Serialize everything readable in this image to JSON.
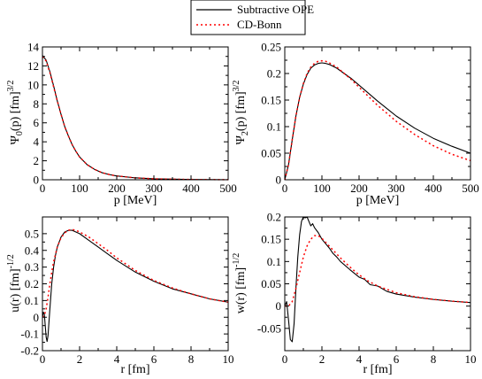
{
  "legend": {
    "items": [
      {
        "label": "Subtractive OPE",
        "color": "#000000",
        "dash": "solid"
      },
      {
        "label": "CD-Bonn",
        "color": "#ff0000",
        "dash": "dotted"
      }
    ]
  },
  "chart_data": [
    {
      "type": "line",
      "xlabel": "p [MeV]",
      "ylabel": {
        "base": "Ψ",
        "sub": "0",
        "mid": "(p) [fm]",
        "sup": "3/2"
      },
      "xlim": [
        0,
        500
      ],
      "ylim": [
        0,
        14
      ],
      "xticks": [
        0,
        100,
        200,
        300,
        400,
        500
      ],
      "yticks": [
        0,
        2,
        4,
        6,
        8,
        10,
        12,
        14
      ],
      "grid": false,
      "series": [
        {
          "name": "Subtractive OPE",
          "x": [
            0,
            10,
            20,
            30,
            40,
            50,
            60,
            70,
            80,
            90,
            100,
            120,
            140,
            160,
            180,
            200,
            250,
            300,
            350,
            400,
            450,
            500
          ],
          "y": [
            13.1,
            12.6,
            11.4,
            9.9,
            8.3,
            6.9,
            5.6,
            4.6,
            3.7,
            3.0,
            2.4,
            1.6,
            1.1,
            0.75,
            0.55,
            0.4,
            0.2,
            0.1,
            0.06,
            0.03,
            0.02,
            0.01
          ]
        },
        {
          "name": "CD-Bonn",
          "x": [
            0,
            10,
            20,
            30,
            40,
            50,
            60,
            70,
            80,
            90,
            100,
            120,
            140,
            160,
            180,
            200,
            250,
            300,
            350,
            400,
            450,
            500
          ],
          "y": [
            13.0,
            12.5,
            11.3,
            9.8,
            8.3,
            6.9,
            5.6,
            4.6,
            3.7,
            3.0,
            2.4,
            1.6,
            1.1,
            0.75,
            0.55,
            0.4,
            0.2,
            0.1,
            0.06,
            0.03,
            0.02,
            0.01
          ]
        }
      ]
    },
    {
      "type": "line",
      "xlabel": "p [MeV]",
      "ylabel": {
        "base": "Ψ",
        "sub": "2",
        "mid": "(p) [fm]",
        "sup": "3/2"
      },
      "xlim": [
        0,
        500
      ],
      "ylim": [
        0,
        0.25
      ],
      "xticks": [
        0,
        100,
        200,
        300,
        400,
        500
      ],
      "yticks": [
        0,
        0.05,
        0.1,
        0.15,
        0.2,
        0.25
      ],
      "ytick_labels": [
        "0",
        "0.05",
        "0.1",
        "0.15",
        "0.2",
        "0.25"
      ],
      "grid": false,
      "series": [
        {
          "name": "Subtractive OPE",
          "x": [
            0,
            10,
            20,
            30,
            40,
            50,
            60,
            70,
            80,
            90,
            100,
            110,
            120,
            140,
            160,
            180,
            200,
            250,
            300,
            350,
            400,
            450,
            500
          ],
          "y": [
            0,
            0.028,
            0.075,
            0.12,
            0.155,
            0.18,
            0.198,
            0.21,
            0.216,
            0.219,
            0.22,
            0.219,
            0.217,
            0.21,
            0.2,
            0.19,
            0.178,
            0.148,
            0.12,
            0.097,
            0.078,
            0.063,
            0.05
          ]
        },
        {
          "name": "CD-Bonn",
          "x": [
            0,
            10,
            20,
            30,
            40,
            50,
            60,
            70,
            80,
            90,
            100,
            110,
            120,
            140,
            160,
            180,
            200,
            250,
            300,
            350,
            400,
            450,
            500
          ],
          "y": [
            0,
            0.028,
            0.075,
            0.12,
            0.155,
            0.181,
            0.2,
            0.212,
            0.219,
            0.223,
            0.224,
            0.223,
            0.22,
            0.212,
            0.2,
            0.188,
            0.174,
            0.14,
            0.11,
            0.085,
            0.064,
            0.048,
            0.036
          ]
        }
      ]
    },
    {
      "type": "line",
      "xlabel": "r [fm]",
      "ylabel": {
        "base": "u(r) [fm]",
        "sub": "",
        "mid": "",
        "sup": "-1/2"
      },
      "xlim": [
        0,
        10
      ],
      "ylim": [
        -0.2,
        0.6
      ],
      "xticks": [
        0,
        2,
        4,
        6,
        8,
        10
      ],
      "yticks": [
        -0.2,
        -0.1,
        0,
        0.1,
        0.2,
        0.3,
        0.4,
        0.5
      ],
      "ytick_labels": [
        "-0.2",
        "-0.1",
        "0",
        "0.1",
        "0.2",
        "0.3",
        "0.4",
        "0.5"
      ],
      "grid": false,
      "series": [
        {
          "name": "Subtractive OPE",
          "x": [
            0,
            0.05,
            0.1,
            0.15,
            0.2,
            0.25,
            0.3,
            0.4,
            0.5,
            0.6,
            0.7,
            0.8,
            1.0,
            1.2,
            1.4,
            1.6,
            1.8,
            2.0,
            2.5,
            3.0,
            3.5,
            4.0,
            5.0,
            6.0,
            7.0,
            8.0,
            9.0,
            10.0
          ],
          "y": [
            0,
            0.03,
            0.02,
            -0.05,
            -0.12,
            -0.145,
            -0.11,
            0.05,
            0.2,
            0.3,
            0.37,
            0.42,
            0.48,
            0.51,
            0.52,
            0.52,
            0.51,
            0.5,
            0.46,
            0.42,
            0.38,
            0.34,
            0.27,
            0.215,
            0.17,
            0.14,
            0.11,
            0.09
          ]
        },
        {
          "name": "CD-Bonn",
          "x": [
            0,
            0.1,
            0.2,
            0.3,
            0.4,
            0.5,
            0.6,
            0.8,
            1.0,
            1.2,
            1.4,
            1.6,
            1.8,
            2.0,
            2.5,
            3.0,
            3.5,
            4.0,
            5.0,
            6.0,
            7.0,
            8.0,
            9.0,
            10.0
          ],
          "y": [
            0,
            0.01,
            0.05,
            0.12,
            0.2,
            0.27,
            0.33,
            0.42,
            0.475,
            0.505,
            0.52,
            0.525,
            0.52,
            0.51,
            0.48,
            0.44,
            0.4,
            0.355,
            0.28,
            0.22,
            0.175,
            0.14,
            0.11,
            0.09
          ]
        }
      ]
    },
    {
      "type": "line",
      "xlabel": "r [fm]",
      "ylabel": {
        "base": "w(r) [fm]",
        "sub": "",
        "mid": "",
        "sup": "-1/2"
      },
      "xlim": [
        0,
        10
      ],
      "ylim": [
        -0.1,
        0.2
      ],
      "xticks": [
        0,
        2,
        4,
        6,
        8,
        10
      ],
      "yticks": [
        -0.05,
        0,
        0.05,
        0.1,
        0.15,
        0.2
      ],
      "ytick_labels": [
        "-0.05",
        "0",
        "0.05",
        "0.1",
        "0.15",
        "0.2"
      ],
      "grid": false,
      "series": [
        {
          "name": "Subtractive OPE",
          "x": [
            0,
            0.1,
            0.2,
            0.3,
            0.4,
            0.5,
            0.6,
            0.7,
            0.8,
            0.9,
            1.0,
            1.1,
            1.2,
            1.3,
            1.4,
            1.5,
            1.6,
            1.8,
            2.0,
            2.2,
            2.4,
            2.6,
            2.8,
            3.0,
            3.5,
            4.0,
            4.3,
            4.6,
            5.0,
            5.5,
            6.0,
            7.0,
            8.0,
            9.0,
            10.0
          ],
          "y": [
            0,
            0.01,
            -0.03,
            -0.075,
            -0.08,
            -0.04,
            0.04,
            0.11,
            0.16,
            0.19,
            0.2,
            0.198,
            0.2,
            0.19,
            0.18,
            0.185,
            0.176,
            0.165,
            0.15,
            0.14,
            0.13,
            0.118,
            0.11,
            0.1,
            0.082,
            0.065,
            0.06,
            0.048,
            0.045,
            0.033,
            0.027,
            0.02,
            0.015,
            0.011,
            0.008
          ]
        },
        {
          "name": "CD-Bonn",
          "x": [
            0,
            0.2,
            0.4,
            0.6,
            0.8,
            1.0,
            1.2,
            1.4,
            1.6,
            1.8,
            2.0,
            2.5,
            3.0,
            3.5,
            4.0,
            4.5,
            5.0,
            6.0,
            7.0,
            8.0,
            9.0,
            10.0
          ],
          "y": [
            0,
            0.0,
            0.01,
            0.04,
            0.075,
            0.11,
            0.135,
            0.15,
            0.158,
            0.158,
            0.152,
            0.13,
            0.108,
            0.088,
            0.07,
            0.056,
            0.045,
            0.03,
            0.021,
            0.015,
            0.011,
            0.008
          ]
        }
      ]
    }
  ]
}
